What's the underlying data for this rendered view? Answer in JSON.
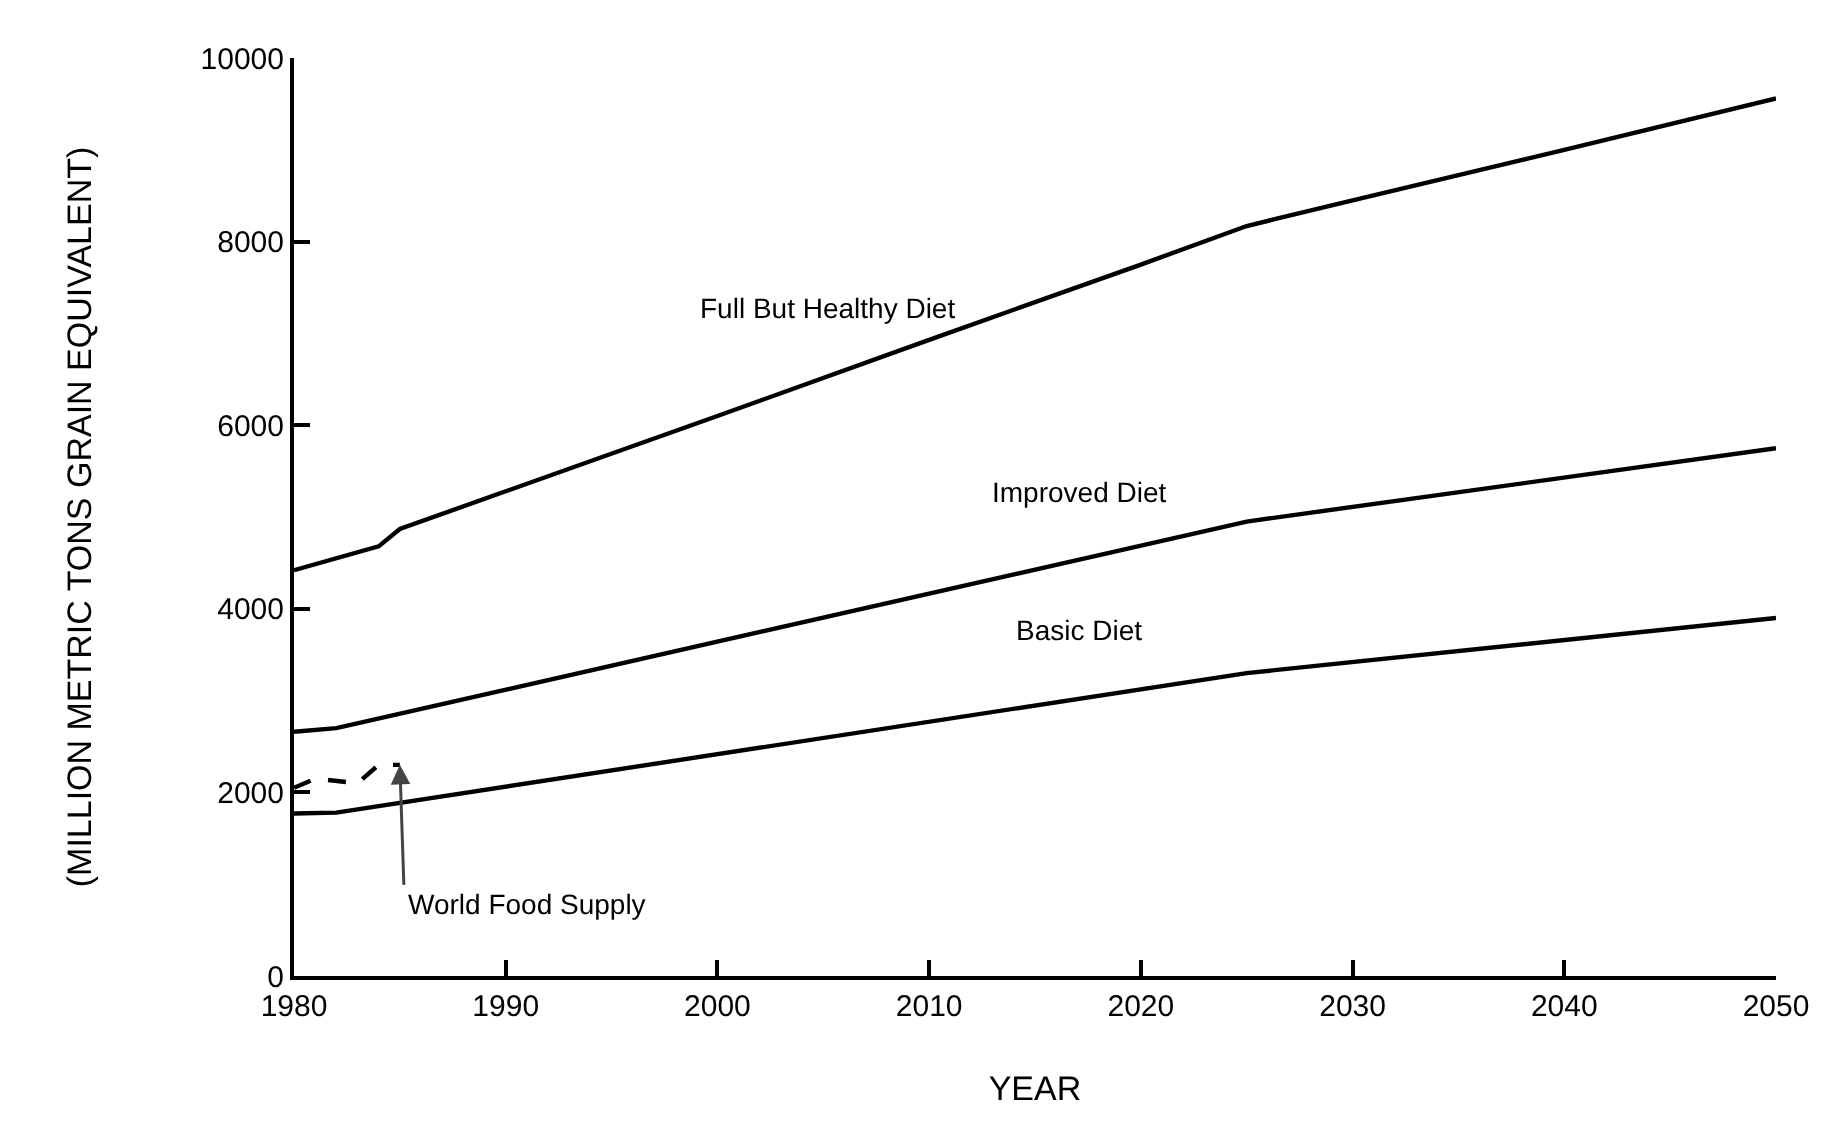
{
  "chart_data": {
    "type": "line",
    "xlabel": "YEAR",
    "ylabel": "(MILLION METRIC TONS GRAIN EQUIVALENT)",
    "xlim": [
      1980,
      2050
    ],
    "xticks": [
      1980,
      1990,
      2000,
      2010,
      2020,
      2030,
      2040,
      2050
    ],
    "ylim": [
      0,
      10000
    ],
    "yticks": [
      0,
      2000,
      4000,
      6000,
      8000,
      10000
    ],
    "grid": false,
    "marker": "none",
    "series": [
      {
        "name": "Full But Healthy Diet",
        "color": "#000000",
        "line_style": "solid",
        "x": [
          1980,
          1984,
          1985,
          1990,
          2000,
          2010,
          2020,
          2025,
          2030,
          2040,
          2050
        ],
        "values": [
          4420,
          4680,
          4870,
          5280,
          6100,
          6930,
          7750,
          8170,
          8450,
          9000,
          9560
        ]
      },
      {
        "name": "Improved Diet",
        "color": "#000000",
        "line_style": "solid",
        "x": [
          1980,
          1982,
          2025,
          2050
        ],
        "values": [
          2660,
          2700,
          4950,
          5750
        ]
      },
      {
        "name": "Basic Diet",
        "color": "#000000",
        "line_style": "solid",
        "x": [
          1980,
          1982,
          2025,
          2050
        ],
        "values": [
          1770,
          1780,
          3300,
          3900
        ]
      },
      {
        "name": "World Food Supply",
        "color": "#000000",
        "line_style": "dashed",
        "x": [
          1980,
          1981,
          1983,
          1984,
          1985
        ],
        "values": [
          2050,
          2150,
          2100,
          2300,
          2300
        ]
      }
    ]
  }
}
